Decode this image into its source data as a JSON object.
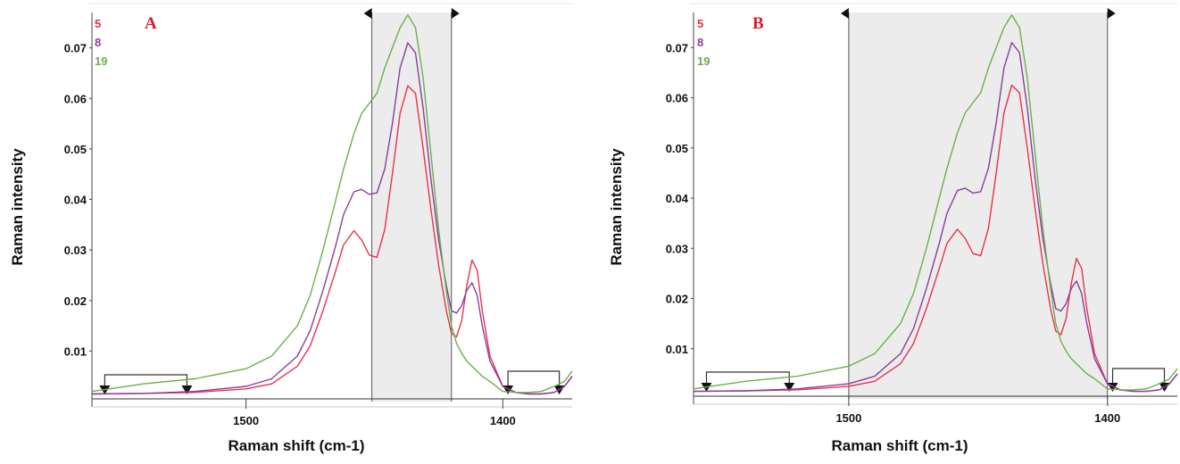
{
  "chart_data": [
    {
      "type": "line",
      "panel_label": "A",
      "xlabel": "Raman shift (cm-1)",
      "ylabel": "Raman intensity",
      "x_reversed": true,
      "xlim": [
        1560,
        1373
      ],
      "ylim": [
        0,
        0.077
      ],
      "x_ticks": [
        1500,
        1400
      ],
      "y_ticks": [
        0.01,
        0.02,
        0.03,
        0.04,
        0.05,
        0.06,
        0.07
      ],
      "y_tick_labels": [
        "0.01",
        "0.02",
        "0.03",
        "0.04",
        "0.05",
        "0.06",
        "0.07"
      ],
      "x_tick_labels": [
        "1500",
        "1400"
      ],
      "selected_range": [
        1451,
        1420
      ],
      "baseline_regions": [
        [
          1555,
          1523
        ],
        [
          1398,
          1378
        ]
      ],
      "series": [
        {
          "name": "5",
          "color": "#e8334a",
          "x": [
            1560,
            1540,
            1520,
            1500,
            1490,
            1480,
            1475,
            1470,
            1465,
            1462,
            1458,
            1455,
            1452,
            1449,
            1446,
            1443,
            1440,
            1437,
            1434,
            1431,
            1428,
            1425,
            1422,
            1420,
            1418,
            1416,
            1414,
            1412,
            1410,
            1408,
            1405,
            1400,
            1395,
            1390,
            1385,
            1380,
            1376,
            1373
          ],
          "values": [
            0.0015,
            0.0016,
            0.0018,
            0.0025,
            0.0035,
            0.007,
            0.011,
            0.018,
            0.026,
            0.031,
            0.0338,
            0.032,
            0.029,
            0.0285,
            0.034,
            0.045,
            0.057,
            0.0625,
            0.061,
            0.05,
            0.038,
            0.027,
            0.018,
            0.0135,
            0.0128,
            0.016,
            0.023,
            0.028,
            0.026,
            0.018,
            0.009,
            0.003,
            0.0018,
            0.0015,
            0.0015,
            0.0018,
            0.003,
            0.005
          ]
        },
        {
          "name": "8",
          "color": "#8a3d9c",
          "x": [
            1560,
            1540,
            1520,
            1500,
            1490,
            1480,
            1475,
            1470,
            1465,
            1462,
            1458,
            1455,
            1452,
            1449,
            1446,
            1443,
            1440,
            1437,
            1434,
            1431,
            1428,
            1425,
            1422,
            1420,
            1418,
            1416,
            1414,
            1412,
            1410,
            1408,
            1405,
            1400,
            1395,
            1390,
            1385,
            1380,
            1376,
            1373
          ],
          "values": [
            0.0015,
            0.0016,
            0.002,
            0.003,
            0.0045,
            0.009,
            0.014,
            0.022,
            0.031,
            0.037,
            0.0415,
            0.042,
            0.041,
            0.0413,
            0.046,
            0.055,
            0.066,
            0.071,
            0.069,
            0.058,
            0.044,
            0.032,
            0.023,
            0.018,
            0.0175,
            0.019,
            0.022,
            0.0235,
            0.021,
            0.015,
            0.008,
            0.003,
            0.0018,
            0.0015,
            0.0015,
            0.0018,
            0.003,
            0.005
          ]
        },
        {
          "name": "19",
          "color": "#6ab04c",
          "x": [
            1560,
            1540,
            1520,
            1500,
            1490,
            1480,
            1475,
            1470,
            1465,
            1462,
            1458,
            1455,
            1452,
            1449,
            1446,
            1443,
            1440,
            1437,
            1434,
            1431,
            1428,
            1425,
            1422,
            1420,
            1418,
            1416,
            1414,
            1412,
            1410,
            1408,
            1405,
            1400,
            1395,
            1390,
            1385,
            1380,
            1376,
            1373
          ],
          "values": [
            0.002,
            0.0035,
            0.0045,
            0.0065,
            0.009,
            0.015,
            0.021,
            0.03,
            0.04,
            0.046,
            0.053,
            0.057,
            0.059,
            0.061,
            0.066,
            0.07,
            0.074,
            0.0765,
            0.074,
            0.064,
            0.049,
            0.034,
            0.022,
            0.015,
            0.0115,
            0.0095,
            0.008,
            0.007,
            0.006,
            0.005,
            0.004,
            0.002,
            0.0018,
            0.0018,
            0.002,
            0.003,
            0.004,
            0.006
          ]
        }
      ]
    },
    {
      "type": "line",
      "panel_label": "B",
      "xlabel": "Raman shift (cm-1)",
      "ylabel": "Raman intensity",
      "x_reversed": true,
      "xlim": [
        1560,
        1373
      ],
      "ylim": [
        0,
        0.077
      ],
      "x_ticks": [
        1500,
        1400
      ],
      "y_ticks": [
        0.01,
        0.02,
        0.03,
        0.04,
        0.05,
        0.06,
        0.07
      ],
      "y_tick_labels": [
        "0.01",
        "0.02",
        "0.03",
        "0.04",
        "0.05",
        "0.06",
        "0.07"
      ],
      "x_tick_labels": [
        "1500",
        "1400"
      ],
      "selected_range": [
        1500,
        1400
      ],
      "baseline_regions": [
        [
          1555,
          1523
        ],
        [
          1398,
          1378
        ]
      ],
      "series": [
        {
          "name": "5",
          "color": "#e8334a",
          "x": [
            1560,
            1540,
            1520,
            1500,
            1490,
            1480,
            1475,
            1470,
            1465,
            1462,
            1458,
            1455,
            1452,
            1449,
            1446,
            1443,
            1440,
            1437,
            1434,
            1431,
            1428,
            1425,
            1422,
            1420,
            1418,
            1416,
            1414,
            1412,
            1410,
            1408,
            1405,
            1400,
            1395,
            1390,
            1385,
            1380,
            1376,
            1373
          ],
          "values": [
            0.0015,
            0.0016,
            0.0018,
            0.0025,
            0.0035,
            0.007,
            0.011,
            0.018,
            0.026,
            0.031,
            0.0338,
            0.032,
            0.029,
            0.0285,
            0.034,
            0.045,
            0.057,
            0.0625,
            0.061,
            0.05,
            0.038,
            0.027,
            0.018,
            0.0135,
            0.0128,
            0.016,
            0.023,
            0.028,
            0.026,
            0.018,
            0.009,
            0.003,
            0.0018,
            0.0015,
            0.0015,
            0.0018,
            0.003,
            0.005
          ]
        },
        {
          "name": "8",
          "color": "#8a3d9c",
          "x": [
            1560,
            1540,
            1520,
            1500,
            1490,
            1480,
            1475,
            1470,
            1465,
            1462,
            1458,
            1455,
            1452,
            1449,
            1446,
            1443,
            1440,
            1437,
            1434,
            1431,
            1428,
            1425,
            1422,
            1420,
            1418,
            1416,
            1414,
            1412,
            1410,
            1408,
            1405,
            1400,
            1395,
            1390,
            1385,
            1380,
            1376,
            1373
          ],
          "values": [
            0.0015,
            0.0016,
            0.002,
            0.003,
            0.0045,
            0.009,
            0.014,
            0.022,
            0.031,
            0.037,
            0.0415,
            0.042,
            0.041,
            0.0413,
            0.046,
            0.055,
            0.066,
            0.071,
            0.069,
            0.058,
            0.044,
            0.032,
            0.023,
            0.018,
            0.0175,
            0.019,
            0.022,
            0.0235,
            0.021,
            0.015,
            0.008,
            0.003,
            0.0018,
            0.0015,
            0.0015,
            0.0018,
            0.003,
            0.005
          ]
        },
        {
          "name": "19",
          "color": "#6ab04c",
          "x": [
            1560,
            1540,
            1520,
            1500,
            1490,
            1480,
            1475,
            1470,
            1465,
            1462,
            1458,
            1455,
            1452,
            1449,
            1446,
            1443,
            1440,
            1437,
            1434,
            1431,
            1428,
            1425,
            1422,
            1420,
            1418,
            1416,
            1414,
            1412,
            1410,
            1408,
            1405,
            1400,
            1395,
            1390,
            1385,
            1380,
            1376,
            1373
          ],
          "values": [
            0.002,
            0.0035,
            0.0045,
            0.0065,
            0.009,
            0.015,
            0.021,
            0.03,
            0.04,
            0.046,
            0.053,
            0.057,
            0.059,
            0.061,
            0.066,
            0.07,
            0.074,
            0.0765,
            0.074,
            0.064,
            0.049,
            0.034,
            0.022,
            0.015,
            0.0115,
            0.0095,
            0.008,
            0.007,
            0.006,
            0.005,
            0.004,
            0.002,
            0.0018,
            0.0018,
            0.002,
            0.003,
            0.004,
            0.006
          ]
        }
      ]
    }
  ]
}
